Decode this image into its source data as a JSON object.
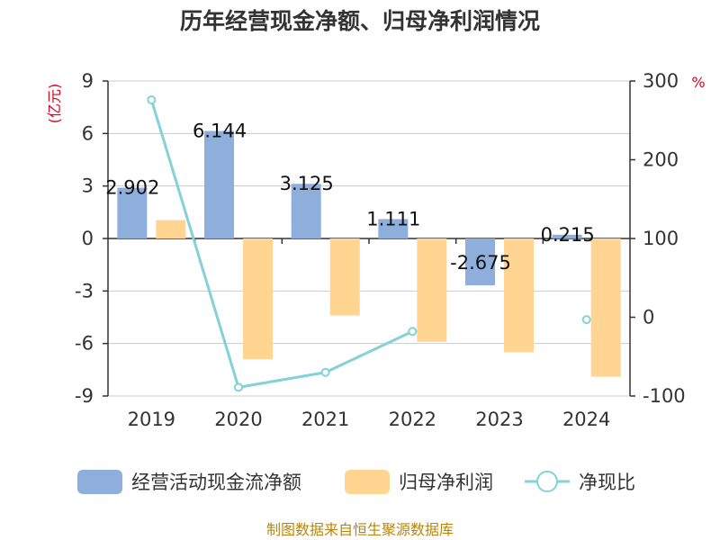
{
  "chart_data": {
    "type": "bar",
    "title": "历年经营现金净额、归母净利润情况",
    "categories": [
      "2019",
      "2020",
      "2021",
      "2022",
      "2023",
      "2024"
    ],
    "left_unit": "(亿元)",
    "right_unit": "%",
    "ylim_left": [
      -9,
      9
    ],
    "yticks_left": [
      9,
      6,
      3,
      0,
      -3,
      -6,
      -9
    ],
    "ylim_right": [
      -100,
      300
    ],
    "yticks_right": [
      300,
      200,
      100,
      0,
      -100
    ],
    "series": [
      {
        "name": "经营活动现金流净额",
        "type": "bar",
        "axis": "left",
        "color": "#8eaedb",
        "values": [
          2.902,
          6.144,
          3.125,
          1.111,
          -2.675,
          0.215
        ],
        "labels": [
          "2.902",
          "6.144",
          "3.125",
          "1.111",
          "-2.675",
          "0.215"
        ]
      },
      {
        "name": "归母净利润",
        "type": "bar",
        "axis": "left",
        "color": "#ffd591",
        "values": [
          1.05,
          -6.9,
          -4.4,
          -5.9,
          -6.5,
          -7.9
        ]
      },
      {
        "name": "净现比",
        "type": "line",
        "axis": "right",
        "color": "#84d1d6",
        "values": [
          276,
          -89,
          -70,
          -18,
          null,
          -3
        ]
      }
    ],
    "grid": true,
    "legend_position": "bottom",
    "source": "制图数据来自恒生聚源数据库"
  }
}
